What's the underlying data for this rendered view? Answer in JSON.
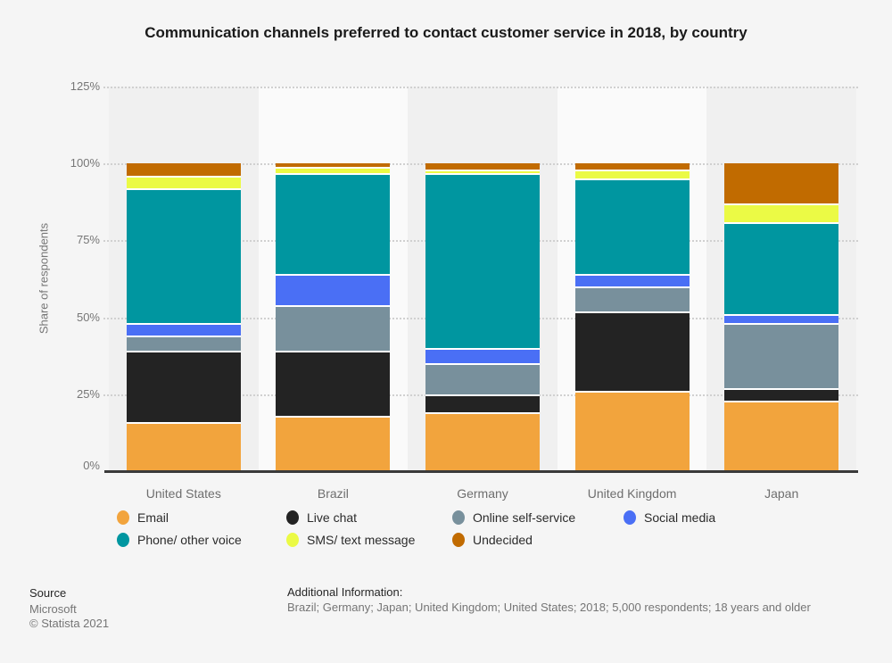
{
  "title": "Communication channels preferred to contact customer service in 2018, by country",
  "y_axis": {
    "title": "Share of respondents",
    "ticks": [
      {
        "label": "125%",
        "value": 125
      },
      {
        "label": "100%",
        "value": 100
      },
      {
        "label": "75%",
        "value": 75
      },
      {
        "label": "50%",
        "value": 50
      },
      {
        "label": "25%",
        "value": 25
      },
      {
        "label": "0%",
        "value": 0
      }
    ]
  },
  "chart_data": {
    "type": "bar",
    "stacked": true,
    "title": "Communication channels preferred to contact customer service in 2018, by country",
    "xlabel": "",
    "ylabel": "Share of respondents",
    "ylim": [
      0,
      125
    ],
    "grid": "dotted-horizontal",
    "legend_position": "bottom",
    "categories": [
      "United States",
      "Brazil",
      "Germany",
      "United Kingdom",
      "Japan"
    ],
    "series": [
      {
        "name": "Email",
        "color": "#F2A43D",
        "values": [
          16,
          18,
          19,
          26,
          23
        ]
      },
      {
        "name": "Live chat",
        "color": "#232323",
        "values": [
          23,
          21,
          6,
          26,
          4
        ]
      },
      {
        "name": "Online self-service",
        "color": "#78909C",
        "values": [
          5,
          15,
          10,
          8,
          21
        ]
      },
      {
        "name": "Social media",
        "color": "#4A6FF5",
        "values": [
          4,
          10,
          5,
          4,
          3
        ]
      },
      {
        "name": "Phone/ other voice",
        "color": "#0096A0",
        "values": [
          44,
          33,
          57,
          31,
          30
        ]
      },
      {
        "name": "SMS/ text message",
        "color": "#EBFA45",
        "values": [
          4,
          2,
          1,
          3,
          6
        ]
      },
      {
        "name": "Undecided",
        "color": "#C16B00",
        "values": [
          4,
          1,
          2,
          2,
          13
        ]
      }
    ]
  },
  "legend": {
    "rows": [
      [
        "Email",
        "Live chat",
        "Online self-service",
        "Social media"
      ],
      [
        "Phone/ other voice",
        "SMS/ text message",
        "Undecided"
      ]
    ]
  },
  "footer": {
    "source_label": "Source",
    "source_name": "Microsoft",
    "copyright": "© Statista 2021",
    "additional_label": "Additional Information:",
    "additional_text": "Brazil; Germany; Japan; United Kingdom; United States; 2018; 5,000 respondents; 18 years and older"
  }
}
